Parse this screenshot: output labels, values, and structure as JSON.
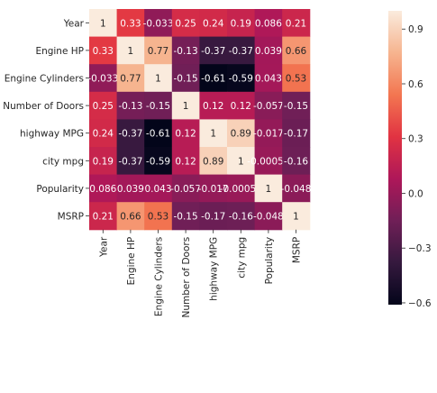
{
  "chart_data": {
    "type": "heatmap",
    "title": "",
    "row_labels": [
      "Year",
      "Engine HP",
      "Engine Cylinders",
      "Number of Doors",
      "highway MPG",
      "city mpg",
      "Popularity",
      "MSRP"
    ],
    "col_labels": [
      "Year",
      "Engine HP",
      "Engine Cylinders",
      "Number of Doors",
      "highway MPG",
      "city mpg",
      "Popularity",
      "MSRP"
    ],
    "values": [
      [
        1,
        0.33,
        -0.033,
        0.25,
        0.24,
        0.19,
        0.086,
        0.21
      ],
      [
        0.33,
        1,
        0.77,
        -0.13,
        -0.37,
        -0.37,
        0.039,
        0.66
      ],
      [
        -0.033,
        0.77,
        1,
        -0.15,
        -0.61,
        -0.59,
        0.043,
        0.53
      ],
      [
        0.25,
        -0.13,
        -0.15,
        1,
        0.12,
        0.12,
        -0.057,
        -0.15
      ],
      [
        0.24,
        -0.37,
        -0.61,
        0.12,
        1,
        0.89,
        -0.017,
        -0.17
      ],
      [
        0.19,
        -0.37,
        -0.59,
        0.12,
        0.89,
        1,
        -0.00055,
        -0.16
      ],
      [
        0.086,
        0.039,
        0.043,
        -0.057,
        -0.017,
        -0.00055,
        1,
        -0.048
      ],
      [
        0.21,
        0.66,
        0.53,
        -0.15,
        -0.17,
        -0.16,
        -0.048,
        1
      ]
    ],
    "annotations": [
      [
        "1",
        "0.33",
        "-0.033",
        "0.25",
        "0.24",
        "0.19",
        "0.086",
        "0.21"
      ],
      [
        "0.33",
        "1",
        "0.77",
        "-0.13",
        "-0.37",
        "-0.37",
        "0.039",
        "0.66"
      ],
      [
        "-0.033",
        "0.77",
        "1",
        "-0.15",
        "-0.61",
        "-0.59",
        "0.043",
        "0.53"
      ],
      [
        "0.25",
        "-0.13",
        "-0.15",
        "1",
        "0.12",
        "0.12",
        "-0.057",
        "-0.15"
      ],
      [
        "0.24",
        "-0.37",
        "-0.61",
        "0.12",
        "1",
        "0.89",
        "-0.017",
        "-0.17"
      ],
      [
        "0.19",
        "-0.37",
        "-0.59",
        "0.12",
        "0.89",
        "1",
        "-0.00055",
        "-0.16"
      ],
      [
        "0.086",
        "0.039",
        "0.043",
        "-0.057",
        "-0.017",
        "-0.00055",
        "1",
        "-0.048"
      ],
      [
        "0.21",
        "0.66",
        "0.53",
        "-0.15",
        "-0.17",
        "-0.16",
        "-0.048",
        "1"
      ]
    ],
    "colorbar": {
      "vmin": -0.61,
      "vmax": 1,
      "ticks": [
        0.9,
        0.6,
        0.3,
        0.0,
        -0.3,
        -0.6
      ],
      "tick_labels": [
        "0.9",
        "0.6",
        "0.3",
        "0.0",
        "−0.3",
        "−0.6"
      ]
    },
    "colormap": "rocket",
    "colormap_stops": [
      "#03051a",
      "#35193e",
      "#701f57",
      "#ae1759",
      "#e13342",
      "#f37651",
      "#f6b48f",
      "#faebdd"
    ]
  }
}
